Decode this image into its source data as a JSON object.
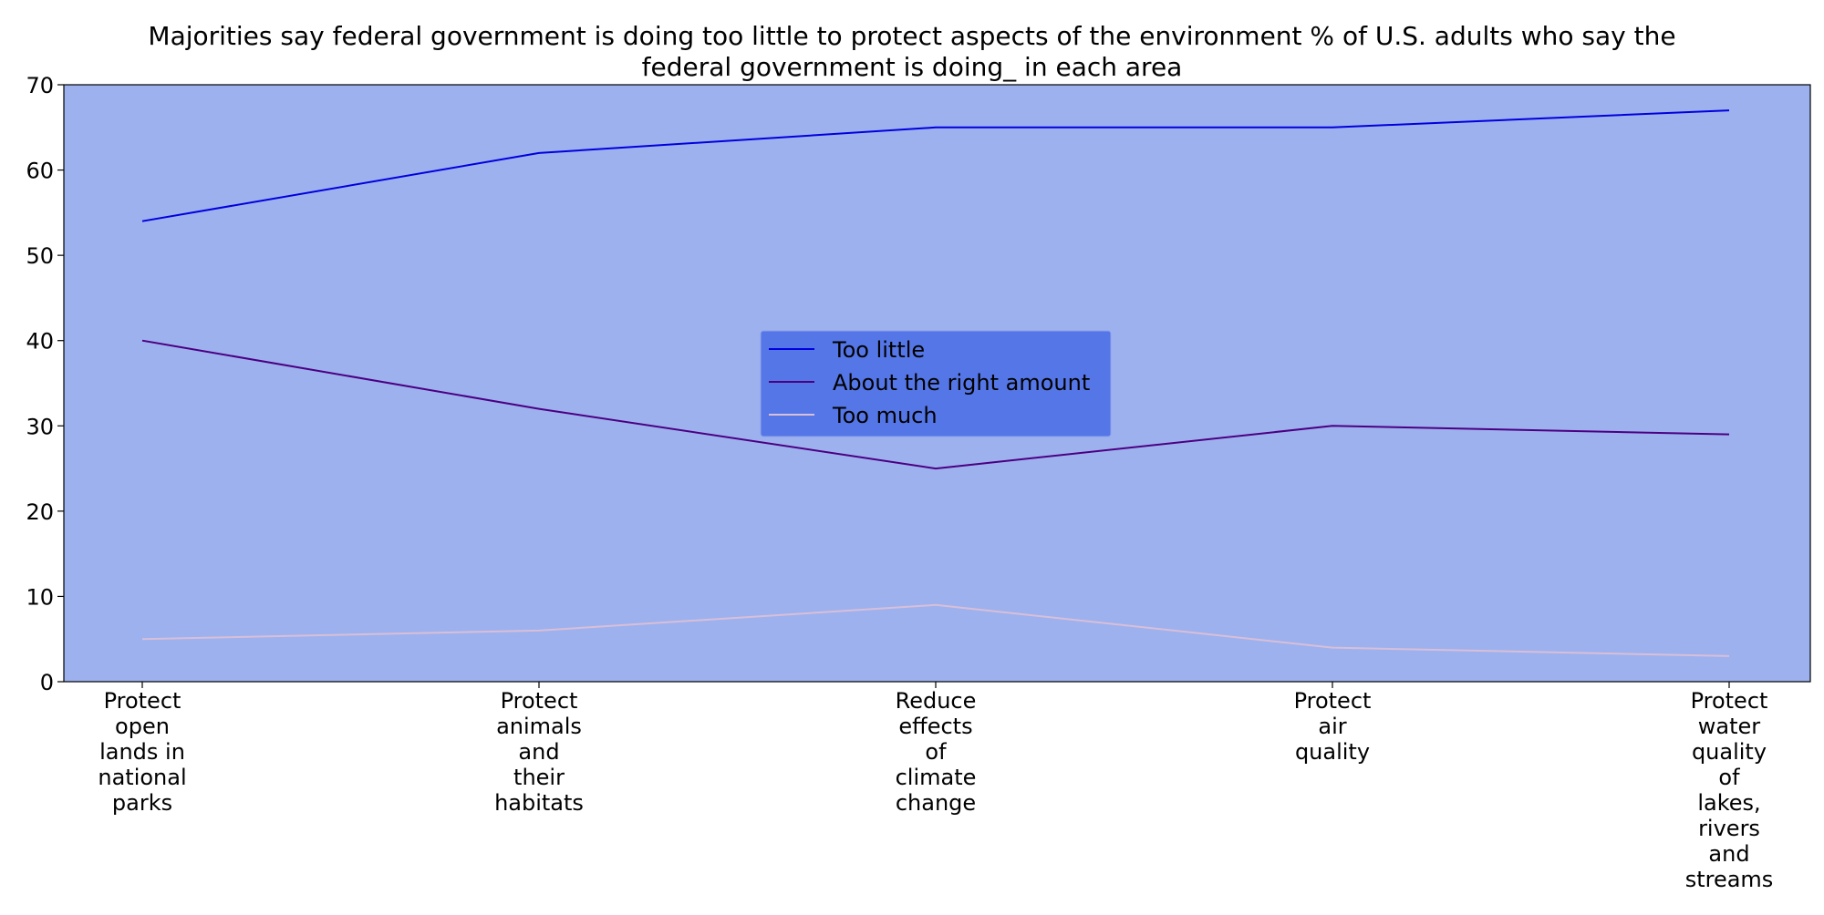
{
  "chart_data": {
    "type": "line",
    "title": "Majorities say federal government is doing too little to protect aspects of the environment % of U.S. adults who say the federal government is doing_ in each area",
    "title_lines": [
      "Majorities say federal government is doing too little to protect aspects of the environment % of U.S. adults who say the",
      "federal government is doing_ in each area"
    ],
    "xlabel": "",
    "ylabel": "",
    "categories": [
      "Protect open lands in national parks",
      "Protect animals and their habitats",
      "Reduce effects of climate change",
      "Protect air quality",
      "Protect water quality of lakes, rivers and streams"
    ],
    "category_lines": [
      [
        "Protect",
        "open",
        "lands in",
        "national",
        "parks"
      ],
      [
        "Protect",
        "animals",
        "and",
        "their",
        "habitats"
      ],
      [
        "Reduce",
        "effects",
        "of",
        "climate",
        "change"
      ],
      [
        "Protect",
        "air",
        "quality"
      ],
      [
        "Protect",
        "water",
        "quality",
        "of",
        "lakes,",
        "rivers",
        "and",
        "streams"
      ]
    ],
    "series": [
      {
        "name": "Too little",
        "values": [
          54,
          62,
          65,
          65,
          67
        ],
        "color": "#0000dd"
      },
      {
        "name": "About the right amount",
        "values": [
          40,
          32,
          25,
          30,
          29
        ],
        "color": "#4b0082"
      },
      {
        "name": "Too much",
        "values": [
          5,
          6,
          9,
          4,
          3
        ],
        "color": "#d8bfd8"
      }
    ],
    "ylim": [
      0,
      70
    ],
    "yticks": [
      0,
      10,
      20,
      30,
      40,
      50,
      60,
      70
    ],
    "grid": false,
    "legend_position": "center",
    "plot_background": "#9db1ee",
    "legend_background": "#5576e6"
  }
}
